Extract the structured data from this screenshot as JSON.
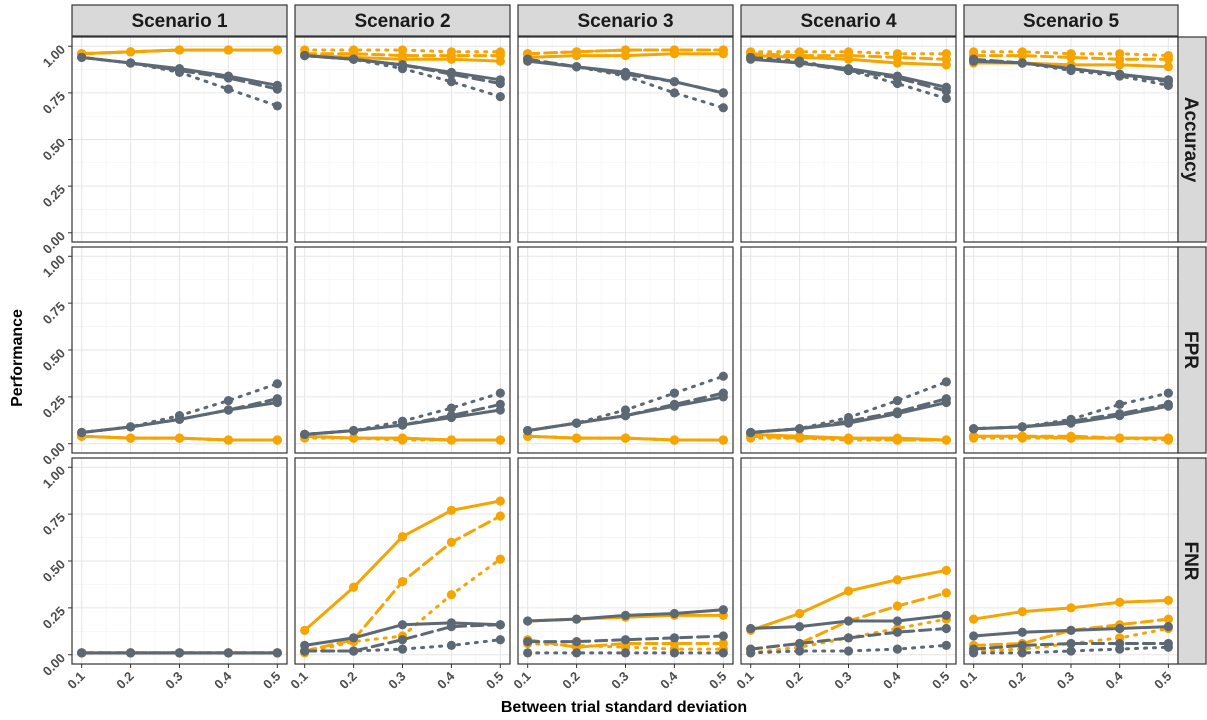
{
  "chart_data": {
    "type": "line",
    "layout": "facet-grid",
    "ylabel": "Performance",
    "xlabel": "Between trial standard deviation",
    "columns": [
      "Scenario 1",
      "Scenario 2",
      "Scenario 3",
      "Scenario 4",
      "Scenario 5"
    ],
    "rows": [
      "Accuracy",
      "FPR",
      "FNR"
    ],
    "x": [
      0.1,
      0.2,
      0.3,
      0.4,
      0.5
    ],
    "x_tick_labels": [
      "0.1",
      "0.2",
      "0.3",
      "0.4",
      "0.5"
    ],
    "xlim": [
      0.1,
      0.5
    ],
    "ylim": [
      0,
      1
    ],
    "y_ticks": [
      0,
      0.25,
      0.5,
      0.75,
      1
    ],
    "y_tick_labels": [
      "0.00",
      "0.25",
      "0.50",
      "0.75",
      "1.00"
    ],
    "grid": true,
    "legend": "none",
    "series_styles": [
      {
        "color": "#F5A400",
        "linetype": "solid"
      },
      {
        "color": "#F5A400",
        "linetype": "dashed"
      },
      {
        "color": "#F5A400",
        "linetype": "dotted"
      },
      {
        "color": "#5C6873",
        "linetype": "solid"
      },
      {
        "color": "#5C6873",
        "linetype": "dashed"
      },
      {
        "color": "#5C6873",
        "linetype": "dotted"
      }
    ],
    "panels": [
      [
        [
          [
            0.96,
            0.97,
            0.98,
            0.98,
            0.98
          ],
          [
            0.96,
            0.97,
            0.98,
            0.98,
            0.98
          ],
          [
            0.96,
            0.97,
            0.98,
            0.98,
            0.98
          ],
          [
            0.94,
            0.91,
            0.88,
            0.84,
            0.79
          ],
          [
            0.94,
            0.91,
            0.87,
            0.83,
            0.77
          ],
          [
            0.94,
            0.91,
            0.86,
            0.77,
            0.68
          ]
        ],
        [
          [
            0.95,
            0.94,
            0.93,
            0.93,
            0.92
          ],
          [
            0.96,
            0.96,
            0.95,
            0.95,
            0.95
          ],
          [
            0.98,
            0.98,
            0.98,
            0.97,
            0.97
          ],
          [
            0.95,
            0.93,
            0.9,
            0.86,
            0.82
          ],
          [
            0.95,
            0.93,
            0.9,
            0.85,
            0.8
          ],
          [
            0.95,
            0.93,
            0.88,
            0.81,
            0.73
          ]
        ],
        [
          [
            0.94,
            0.95,
            0.95,
            0.96,
            0.96
          ],
          [
            0.96,
            0.97,
            0.98,
            0.98,
            0.98
          ],
          [
            0.96,
            0.97,
            0.98,
            0.98,
            0.98
          ],
          [
            0.92,
            0.89,
            0.86,
            0.81,
            0.75
          ],
          [
            0.93,
            0.89,
            0.85,
            0.81,
            0.75
          ],
          [
            0.93,
            0.89,
            0.84,
            0.75,
            0.67
          ]
        ],
        [
          [
            0.95,
            0.94,
            0.93,
            0.91,
            0.9
          ],
          [
            0.96,
            0.95,
            0.95,
            0.94,
            0.93
          ],
          [
            0.97,
            0.97,
            0.97,
            0.96,
            0.96
          ],
          [
            0.93,
            0.91,
            0.88,
            0.84,
            0.78
          ],
          [
            0.94,
            0.91,
            0.87,
            0.83,
            0.76
          ],
          [
            0.94,
            0.92,
            0.87,
            0.8,
            0.72
          ]
        ],
        [
          [
            0.91,
            0.91,
            0.9,
            0.9,
            0.89
          ],
          [
            0.95,
            0.95,
            0.94,
            0.93,
            0.93
          ],
          [
            0.97,
            0.97,
            0.96,
            0.96,
            0.95
          ],
          [
            0.92,
            0.91,
            0.88,
            0.85,
            0.82
          ],
          [
            0.93,
            0.91,
            0.88,
            0.85,
            0.81
          ],
          [
            0.93,
            0.91,
            0.87,
            0.84,
            0.79
          ]
        ]
      ],
      [
        [
          [
            0.04,
            0.03,
            0.03,
            0.02,
            0.02
          ],
          [
            0.04,
            0.03,
            0.03,
            0.02,
            0.02
          ],
          [
            0.04,
            0.03,
            0.03,
            0.02,
            0.02
          ],
          [
            0.06,
            0.09,
            0.13,
            0.18,
            0.22
          ],
          [
            0.06,
            0.09,
            0.13,
            0.18,
            0.24
          ],
          [
            0.06,
            0.09,
            0.15,
            0.23,
            0.32
          ]
        ],
        [
          [
            0.04,
            0.03,
            0.03,
            0.02,
            0.02
          ],
          [
            0.04,
            0.03,
            0.03,
            0.02,
            0.02
          ],
          [
            0.03,
            0.03,
            0.02,
            0.02,
            0.02
          ],
          [
            0.05,
            0.07,
            0.1,
            0.14,
            0.18
          ],
          [
            0.05,
            0.07,
            0.1,
            0.15,
            0.21
          ],
          [
            0.05,
            0.07,
            0.12,
            0.19,
            0.27
          ]
        ],
        [
          [
            0.04,
            0.03,
            0.03,
            0.02,
            0.02
          ],
          [
            0.04,
            0.03,
            0.03,
            0.02,
            0.02
          ],
          [
            0.04,
            0.03,
            0.03,
            0.02,
            0.02
          ],
          [
            0.07,
            0.11,
            0.15,
            0.2,
            0.25
          ],
          [
            0.07,
            0.11,
            0.15,
            0.21,
            0.27
          ],
          [
            0.07,
            0.11,
            0.18,
            0.27,
            0.36
          ]
        ],
        [
          [
            0.05,
            0.04,
            0.03,
            0.03,
            0.02
          ],
          [
            0.04,
            0.03,
            0.03,
            0.02,
            0.02
          ],
          [
            0.03,
            0.03,
            0.02,
            0.02,
            0.02
          ],
          [
            0.06,
            0.08,
            0.11,
            0.16,
            0.22
          ],
          [
            0.06,
            0.08,
            0.12,
            0.17,
            0.24
          ],
          [
            0.06,
            0.08,
            0.14,
            0.23,
            0.33
          ]
        ],
        [
          [
            0.04,
            0.04,
            0.03,
            0.03,
            0.03
          ],
          [
            0.04,
            0.04,
            0.04,
            0.03,
            0.03
          ],
          [
            0.03,
            0.03,
            0.03,
            0.03,
            0.02
          ],
          [
            0.08,
            0.09,
            0.11,
            0.15,
            0.2
          ],
          [
            0.08,
            0.09,
            0.12,
            0.16,
            0.21
          ],
          [
            0.08,
            0.09,
            0.13,
            0.21,
            0.27
          ]
        ]
      ],
      [
        [
          [
            0.01,
            0.01,
            0.01,
            0.01,
            0.01
          ],
          [
            0.01,
            0.01,
            0.01,
            0.01,
            0.01
          ],
          [
            0.01,
            0.01,
            0.01,
            0.01,
            0.01
          ],
          [
            0.01,
            0.01,
            0.01,
            0.01,
            0.01
          ],
          [
            0.01,
            0.01,
            0.01,
            0.01,
            0.01
          ],
          [
            0.01,
            0.01,
            0.01,
            0.01,
            0.01
          ]
        ],
        [
          [
            0.13,
            0.36,
            0.63,
            0.77,
            0.82
          ],
          [
            0.02,
            0.08,
            0.39,
            0.6,
            0.74
          ],
          [
            0.01,
            0.07,
            0.1,
            0.32,
            0.51
          ],
          [
            0.05,
            0.09,
            0.16,
            0.17,
            0.16
          ],
          [
            0.02,
            0.02,
            0.08,
            0.15,
            0.16
          ],
          [
            0.02,
            0.02,
            0.03,
            0.05,
            0.08
          ]
        ],
        [
          [
            0.18,
            0.19,
            0.2,
            0.21,
            0.21
          ],
          [
            0.08,
            0.04,
            0.06,
            0.06,
            0.06
          ],
          [
            0.06,
            0.05,
            0.04,
            0.03,
            0.03
          ],
          [
            0.18,
            0.19,
            0.21,
            0.22,
            0.24
          ],
          [
            0.07,
            0.07,
            0.08,
            0.09,
            0.1
          ],
          [
            0.01,
            0.01,
            0.01,
            0.01,
            0.01
          ]
        ],
        [
          [
            0.13,
            0.22,
            0.34,
            0.4,
            0.45
          ],
          [
            0.03,
            0.06,
            0.18,
            0.26,
            0.33
          ],
          [
            0.01,
            0.04,
            0.09,
            0.14,
            0.19
          ],
          [
            0.14,
            0.15,
            0.18,
            0.18,
            0.21
          ],
          [
            0.03,
            0.06,
            0.09,
            0.12,
            0.14
          ],
          [
            0.01,
            0.02,
            0.02,
            0.03,
            0.05
          ]
        ],
        [
          [
            0.19,
            0.23,
            0.25,
            0.28,
            0.29
          ],
          [
            0.05,
            0.06,
            0.13,
            0.16,
            0.19
          ],
          [
            0.02,
            0.03,
            0.06,
            0.09,
            0.14
          ],
          [
            0.1,
            0.12,
            0.13,
            0.14,
            0.15
          ],
          [
            0.03,
            0.05,
            0.06,
            0.06,
            0.06
          ],
          [
            0.01,
            0.01,
            0.02,
            0.03,
            0.04
          ]
        ]
      ]
    ]
  }
}
